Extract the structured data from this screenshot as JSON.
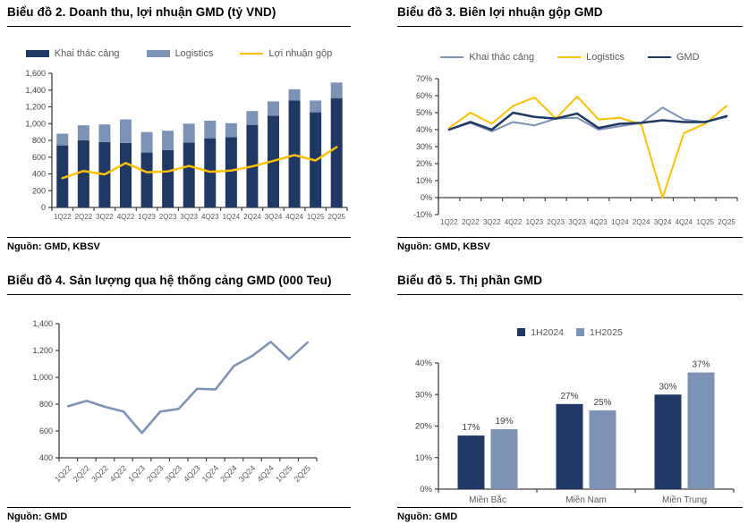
{
  "page": {
    "background": "#ffffff"
  },
  "colors": {
    "navy": "#1F3864",
    "blue_gray": "#7C93B5",
    "yellow": "#FFC000",
    "axis": "#404040",
    "tick_text": "#404040",
    "label_text": "#595959"
  },
  "chart_data": [
    {
      "type": "bar",
      "subtype": "stacked-with-line-overlay",
      "title": "Biểu đồ 2. Doanh thu, lợi nhuận GMD (tỷ VND)",
      "source_note": "Nguồn: GMD, KBSV",
      "categories": [
        "1Q22",
        "2Q22",
        "3Q22",
        "4Q22",
        "1Q23",
        "2Q23",
        "3Q23",
        "4Q23",
        "1Q24",
        "2Q24",
        "3Q24",
        "4Q24",
        "1Q25",
        "2Q25"
      ],
      "bar_series": [
        {
          "name": "Khai thác cảng",
          "color": "#1F3864",
          "values": [
            740,
            800,
            780,
            770,
            655,
            685,
            775,
            825,
            840,
            985,
            1095,
            1275,
            1135,
            1305
          ]
        },
        {
          "name": "Logistics",
          "color": "#7C93B5",
          "values": [
            140,
            180,
            210,
            280,
            245,
            230,
            225,
            210,
            165,
            165,
            170,
            135,
            140,
            185
          ]
        }
      ],
      "line_series": [
        {
          "name": "Lợi nhuận gộp",
          "color": "#FFC000",
          "width": 2.5,
          "values": [
            350,
            435,
            395,
            530,
            420,
            430,
            495,
            425,
            440,
            490,
            555,
            625,
            560,
            720
          ]
        }
      ],
      "ylim": [
        0,
        1600
      ],
      "ytick_step": 200,
      "y_format": "number",
      "legend_position": "top",
      "grid": false
    },
    {
      "type": "line",
      "title": "Biểu đồ 3. Biên lợi nhuận gộp GMD",
      "source_note": "Nguồn: GMD, KBSV",
      "categories": [
        "1Q22",
        "2Q22",
        "3Q22",
        "4Q22",
        "1Q23",
        "2Q23",
        "3Q23",
        "4Q23",
        "1Q24",
        "2Q24",
        "3Q24",
        "4Q24",
        "1Q25",
        "2Q25"
      ],
      "series": [
        {
          "name": "Khai thác cảng",
          "color": "#7C93B5",
          "width": 2,
          "values": [
            40,
            44,
            39,
            44.5,
            42.5,
            46.5,
            47,
            40,
            42,
            44,
            53,
            46,
            44.5,
            47.5
          ]
        },
        {
          "name": "Logistics",
          "color": "#FFC000",
          "width": 2,
          "values": [
            41,
            50,
            43.5,
            54,
            59,
            46.5,
            59.5,
            46,
            47,
            43,
            0,
            38,
            43.5,
            54
          ]
        },
        {
          "name": "GMD",
          "color": "#1F3864",
          "width": 2.5,
          "values": [
            40,
            44.5,
            40,
            50,
            47.5,
            46.5,
            49.5,
            41,
            43.5,
            44,
            45.5,
            44.5,
            44.5,
            48
          ]
        }
      ],
      "ylim": [
        -10,
        70
      ],
      "ytick_step": 10,
      "y_format": "percent",
      "legend_position": "top",
      "grid": false
    },
    {
      "type": "line",
      "title": "Biểu đồ 4. Sản lượng qua hệ thống cảng GMD (000 Teu)",
      "source_note": "Nguồn: GMD",
      "categories": [
        "1Q22",
        "2Q22",
        "3Q22",
        "4Q22",
        "1Q23",
        "2Q23",
        "3Q23",
        "4Q23",
        "1Q24",
        "2Q24",
        "3Q24",
        "4Q24",
        "1Q25",
        "2Q25"
      ],
      "series": [
        {
          "name": "Sản lượng",
          "color": "#7C93B5",
          "width": 2.5,
          "values": [
            785,
            825,
            780,
            745,
            585,
            745,
            765,
            915,
            910,
            1085,
            1160,
            1265,
            1135,
            1260
          ]
        }
      ],
      "ylim": [
        400,
        1400
      ],
      "ytick_step": 200,
      "y_format": "number",
      "x_label_rotation": -45,
      "legend_position": "none",
      "grid": false
    },
    {
      "type": "bar",
      "subtype": "grouped",
      "title": "Biểu đồ 5. Thị phần GMD",
      "source_note": "Nguồn: GMD",
      "categories": [
        "Miền Bắc",
        "Miền Nam",
        "Miền Trung"
      ],
      "series": [
        {
          "name": "1H2024",
          "color": "#1F3864",
          "values": [
            17,
            27,
            30
          ]
        },
        {
          "name": "1H2025",
          "color": "#7C93B5",
          "values": [
            19,
            25,
            37
          ]
        }
      ],
      "ylim": [
        0,
        40
      ],
      "ytick_step": 10,
      "y_format": "percent",
      "data_labels": true,
      "legend_position": "top",
      "grid": false
    }
  ]
}
